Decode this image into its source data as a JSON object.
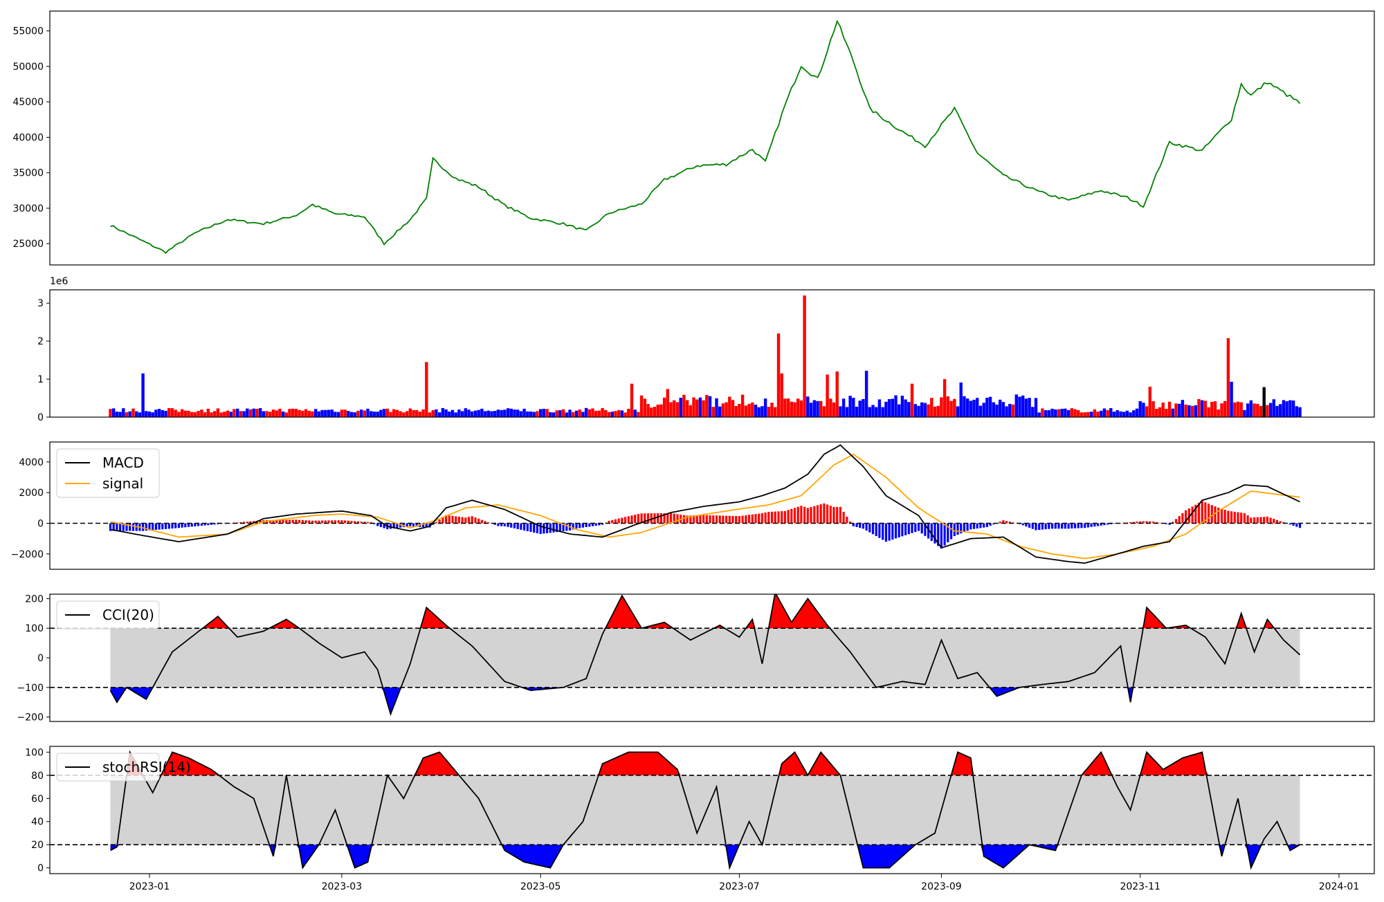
{
  "chart_data": [
    {
      "type": "line",
      "panel": "price",
      "color": "#008000",
      "ylim": [
        22000,
        57800
      ],
      "yticks": [
        25000,
        30000,
        35000,
        40000,
        45000,
        50000,
        55000
      ],
      "x": [
        "2022-12-20",
        "2022-12-28",
        "2023-01-06",
        "2023-01-15",
        "2023-01-25",
        "2023-02-05",
        "2023-02-15",
        "2023-02-20",
        "2023-02-27",
        "2023-03-08",
        "2023-03-14",
        "2023-03-22",
        "2023-03-27",
        "2023-03-29",
        "2023-04-05",
        "2023-04-12",
        "2023-04-20",
        "2023-04-28",
        "2023-05-08",
        "2023-05-15",
        "2023-05-22",
        "2023-06-01",
        "2023-06-08",
        "2023-06-18",
        "2023-06-27",
        "2023-07-05",
        "2023-07-09",
        "2023-07-15",
        "2023-07-20",
        "2023-07-25",
        "2023-07-31",
        "2023-08-05",
        "2023-08-10",
        "2023-08-20",
        "2023-08-27",
        "2023-09-05",
        "2023-09-12",
        "2023-09-20",
        "2023-10-01",
        "2023-10-10",
        "2023-10-20",
        "2023-10-28",
        "2023-11-02",
        "2023-11-10",
        "2023-11-20",
        "2023-11-29",
        "2023-12-02",
        "2023-12-05",
        "2023-12-10",
        "2023-12-20"
      ],
      "y": [
        27600,
        25800,
        23800,
        26500,
        28400,
        27800,
        29000,
        30500,
        29200,
        28800,
        25000,
        28400,
        31300,
        36900,
        34200,
        33000,
        30400,
        28600,
        27800,
        26800,
        29300,
        30600,
        34000,
        36000,
        36200,
        38300,
        36500,
        44500,
        50200,
        48200,
        56400,
        50700,
        44000,
        40800,
        38800,
        44000,
        37800,
        34600,
        32300,
        31100,
        32500,
        31500,
        30300,
        39300,
        38100,
        42600,
        47500,
        45900,
        47800,
        44800
      ]
    },
    {
      "type": "bar",
      "panel": "volume",
      "scale_label": "1e6",
      "ylim": [
        0,
        3.35
      ],
      "yticks": [
        0,
        1,
        2,
        3
      ],
      "colors": {
        "up": "#ff0000",
        "down": "#0000ff",
        "flat": "#000000"
      },
      "spikes": [
        {
          "x": "2022-12-30",
          "value": 1.15,
          "direction": "down"
        },
        {
          "x": "2023-03-27",
          "value": 1.45,
          "direction": "up"
        },
        {
          "x": "2023-05-29",
          "value": 0.88,
          "direction": "up"
        },
        {
          "x": "2023-06-09",
          "value": 0.74,
          "direction": "up"
        },
        {
          "x": "2023-07-13",
          "value": 2.2,
          "direction": "up"
        },
        {
          "x": "2023-07-14",
          "value": 1.15,
          "direction": "up"
        },
        {
          "x": "2023-07-21",
          "value": 3.2,
          "direction": "up"
        },
        {
          "x": "2023-07-28",
          "value": 1.12,
          "direction": "up"
        },
        {
          "x": "2023-07-31",
          "value": 1.2,
          "direction": "up"
        },
        {
          "x": "2023-08-09",
          "value": 1.22,
          "direction": "down"
        },
        {
          "x": "2023-08-23",
          "value": 0.88,
          "direction": "up"
        },
        {
          "x": "2023-09-02",
          "value": 1.0,
          "direction": "up"
        },
        {
          "x": "2023-09-07",
          "value": 0.91,
          "direction": "down"
        },
        {
          "x": "2023-11-04",
          "value": 0.8,
          "direction": "up"
        },
        {
          "x": "2023-11-28",
          "value": 2.08,
          "direction": "up"
        },
        {
          "x": "2023-11-29",
          "value": 0.93,
          "direction": "down"
        },
        {
          "x": "2023-12-09",
          "value": 0.79,
          "direction": "flat"
        }
      ]
    },
    {
      "type": "line",
      "panel": "macd",
      "ylim": [
        -3000,
        5300
      ],
      "yticks": [
        -2000,
        0,
        2000,
        4000
      ],
      "series": [
        {
          "name": "MACD",
          "color": "#000000",
          "x": [
            "2022-12-20",
            "2022-12-30",
            "2023-01-10",
            "2023-01-25",
            "2023-02-05",
            "2023-02-15",
            "2023-03-01",
            "2023-03-10",
            "2023-03-15",
            "2023-03-22",
            "2023-03-28",
            "2023-04-02",
            "2023-04-10",
            "2023-04-20",
            "2023-05-01",
            "2023-05-10",
            "2023-05-20",
            "2023-05-30",
            "2023-06-10",
            "2023-06-20",
            "2023-07-01",
            "2023-07-08",
            "2023-07-15",
            "2023-07-22",
            "2023-07-27",
            "2023-08-01",
            "2023-08-08",
            "2023-08-15",
            "2023-08-25",
            "2023-09-01",
            "2023-09-10",
            "2023-09-20",
            "2023-09-30",
            "2023-10-10",
            "2023-10-15",
            "2023-10-25",
            "2023-11-02",
            "2023-11-10",
            "2023-11-20",
            "2023-11-28",
            "2023-12-03",
            "2023-12-10",
            "2023-12-20"
          ],
          "y": [
            -400,
            -800,
            -1200,
            -700,
            300,
            600,
            800,
            500,
            -200,
            -500,
            -200,
            1000,
            1500,
            900,
            -200,
            -700,
            -900,
            -100,
            700,
            1100,
            1400,
            1800,
            2300,
            3200,
            4500,
            5100,
            3700,
            1800,
            500,
            -1600,
            -1000,
            -900,
            -2200,
            -2500,
            -2600,
            -2000,
            -1500,
            -1200,
            1500,
            2000,
            2500,
            2400,
            1400
          ]
        },
        {
          "name": "signal",
          "color": "#ffa500",
          "x": [
            "2022-12-20",
            "2022-12-30",
            "2023-01-10",
            "2023-01-25",
            "2023-02-05",
            "2023-02-20",
            "2023-03-01",
            "2023-03-12",
            "2023-03-22",
            "2023-03-30",
            "2023-04-08",
            "2023-04-18",
            "2023-05-01",
            "2023-05-12",
            "2023-05-22",
            "2023-06-01",
            "2023-06-15",
            "2023-06-30",
            "2023-07-10",
            "2023-07-20",
            "2023-07-30",
            "2023-08-05",
            "2023-08-15",
            "2023-08-25",
            "2023-09-05",
            "2023-09-15",
            "2023-09-25",
            "2023-10-05",
            "2023-10-15",
            "2023-10-25",
            "2023-11-05",
            "2023-11-15",
            "2023-11-25",
            "2023-12-05",
            "2023-12-20"
          ],
          "y": [
            100,
            -300,
            -900,
            -700,
            100,
            500,
            600,
            400,
            -300,
            200,
            1000,
            1200,
            500,
            -400,
            -900,
            -600,
            400,
            900,
            1200,
            1800,
            3800,
            4500,
            3000,
            1000,
            -500,
            -700,
            -1500,
            -2000,
            -2300,
            -2000,
            -1500,
            -700,
            800,
            2100,
            1700
          ]
        }
      ],
      "histogram": {
        "colors": {
          "positive": "#ff0000",
          "negative": "#0000ff"
        },
        "peak_positive": 1150,
        "peak_negative": -1800
      }
    },
    {
      "type": "line",
      "panel": "cci",
      "series": [
        {
          "name": "CCI(20)",
          "color": "#000000"
        }
      ],
      "ylim": [
        -215,
        215
      ],
      "yticks": [
        -200,
        -100,
        0,
        100,
        200
      ],
      "thresholds": [
        100,
        -100
      ],
      "fill_colors": {
        "band": "#d3d3d3",
        "above": "#ff0000",
        "below": "#0000ff"
      },
      "x": [
        "2022-12-20",
        "2022-12-22",
        "2022-12-25",
        "2022-12-28",
        "2022-12-31",
        "2023-01-03",
        "2023-01-08",
        "2023-01-15",
        "2023-01-22",
        "2023-01-28",
        "2023-02-05",
        "2023-02-12",
        "2023-02-16",
        "2023-02-22",
        "2023-03-01",
        "2023-03-08",
        "2023-03-12",
        "2023-03-16",
        "2023-03-22",
        "2023-03-27",
        "2023-04-02",
        "2023-04-10",
        "2023-04-20",
        "2023-04-28",
        "2023-05-08",
        "2023-05-15",
        "2023-05-20",
        "2023-05-26",
        "2023-06-01",
        "2023-06-08",
        "2023-06-16",
        "2023-06-25",
        "2023-07-01",
        "2023-07-05",
        "2023-07-08",
        "2023-07-12",
        "2023-07-17",
        "2023-07-22",
        "2023-07-28",
        "2023-08-04",
        "2023-08-12",
        "2023-08-20",
        "2023-08-27",
        "2023-09-01",
        "2023-09-06",
        "2023-09-12",
        "2023-09-18",
        "2023-09-25",
        "2023-10-02",
        "2023-10-10",
        "2023-10-18",
        "2023-10-26",
        "2023-10-29",
        "2023-11-03",
        "2023-11-09",
        "2023-11-15",
        "2023-11-21",
        "2023-11-27",
        "2023-12-02",
        "2023-12-06",
        "2023-12-10",
        "2023-12-15",
        "2023-12-20"
      ],
      "y": [
        -110,
        -150,
        -100,
        -120,
        -140,
        -80,
        20,
        80,
        140,
        70,
        90,
        130,
        100,
        50,
        0,
        20,
        -40,
        -190,
        -20,
        170,
        110,
        40,
        -80,
        -110,
        -100,
        -70,
        80,
        210,
        100,
        120,
        60,
        110,
        70,
        130,
        -20,
        220,
        120,
        200,
        110,
        20,
        -100,
        -80,
        -90,
        60,
        -70,
        -50,
        -130,
        -100,
        -90,
        -80,
        -50,
        40,
        -150,
        170,
        100,
        110,
        70,
        -20,
        150,
        20,
        130,
        60,
        10
      ]
    },
    {
      "type": "line",
      "panel": "stochrsi",
      "series": [
        {
          "name": "stochRSI(14)",
          "color": "#000000"
        }
      ],
      "ylim": [
        -5,
        105
      ],
      "yticks": [
        0,
        20,
        40,
        60,
        80,
        100
      ],
      "thresholds": [
        80,
        20
      ],
      "fill_colors": {
        "band": "#d3d3d3",
        "above": "#ff0000",
        "below": "#0000ff"
      },
      "x": [
        "2022-12-20",
        "2022-12-22",
        "2022-12-26",
        "2022-12-29",
        "2023-01-02",
        "2023-01-08",
        "2023-01-13",
        "2023-01-20",
        "2023-01-27",
        "2023-02-02",
        "2023-02-08",
        "2023-02-12",
        "2023-02-17",
        "2023-02-22",
        "2023-02-27",
        "2023-03-05",
        "2023-03-09",
        "2023-03-15",
        "2023-03-20",
        "2023-03-26",
        "2023-03-31",
        "2023-04-06",
        "2023-04-12",
        "2023-04-20",
        "2023-04-26",
        "2023-05-04",
        "2023-05-08",
        "2023-05-14",
        "2023-05-20",
        "2023-05-28",
        "2023-06-06",
        "2023-06-12",
        "2023-06-18",
        "2023-06-24",
        "2023-06-28",
        "2023-07-04",
        "2023-07-08",
        "2023-07-14",
        "2023-07-18",
        "2023-07-22",
        "2023-07-26",
        "2023-08-01",
        "2023-08-08",
        "2023-08-16",
        "2023-08-24",
        "2023-08-30",
        "2023-09-06",
        "2023-09-10",
        "2023-09-14",
        "2023-09-20",
        "2023-09-28",
        "2023-10-06",
        "2023-10-14",
        "2023-10-20",
        "2023-10-25",
        "2023-10-29",
        "2023-11-03",
        "2023-11-08",
        "2023-11-14",
        "2023-11-20",
        "2023-11-26",
        "2023-12-01",
        "2023-12-05",
        "2023-12-09",
        "2023-12-13",
        "2023-12-17",
        "2023-12-20"
      ],
      "y": [
        15,
        18,
        100,
        85,
        65,
        100,
        95,
        85,
        70,
        60,
        10,
        80,
        0,
        20,
        50,
        0,
        5,
        80,
        60,
        95,
        100,
        80,
        60,
        15,
        5,
        0,
        20,
        40,
        90,
        100,
        100,
        85,
        30,
        70,
        0,
        40,
        20,
        90,
        100,
        80,
        100,
        80,
        0,
        0,
        20,
        30,
        100,
        95,
        10,
        0,
        20,
        15,
        80,
        100,
        70,
        50,
        100,
        85,
        95,
        100,
        10,
        60,
        0,
        25,
        40,
        15,
        20
      ]
    }
  ],
  "xaxis": {
    "ticks": [
      "2023-01",
      "2023-03",
      "2023-05",
      "2023-07",
      "2023-09",
      "2023-11",
      "2024-01"
    ]
  }
}
